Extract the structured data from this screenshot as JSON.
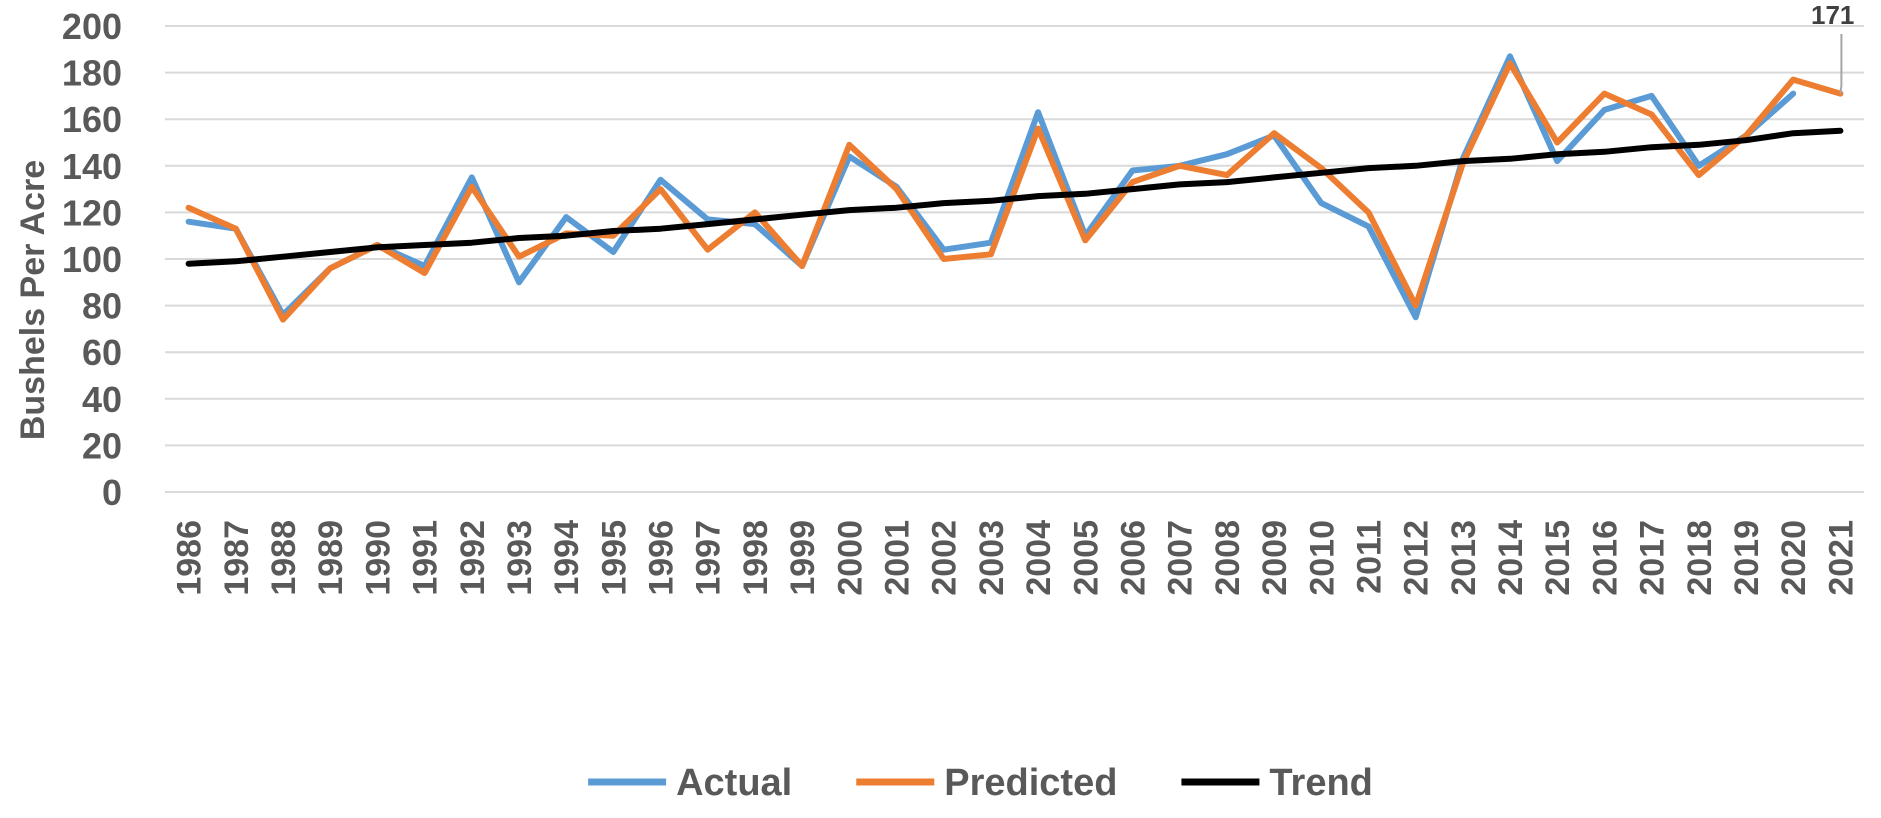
{
  "chart_data": {
    "type": "line",
    "title": "",
    "xlabel": "",
    "ylabel": "Bushels Per Acre",
    "ylim": [
      0,
      200
    ],
    "yticks": [
      "0",
      "20",
      "40",
      "60",
      "80",
      "100",
      "120",
      "140",
      "160",
      "180",
      "200"
    ],
    "grid": "horizontal",
    "legend_position": "bottom",
    "categories": [
      "1986",
      "1987",
      "1988",
      "1989",
      "1990",
      "1991",
      "1992",
      "1993",
      "1994",
      "1995",
      "1996",
      "1997",
      "1998",
      "1999",
      "2000",
      "2001",
      "2002",
      "2003",
      "2004",
      "2005",
      "2006",
      "2007",
      "2008",
      "2009",
      "2010",
      "2011",
      "2012",
      "2013",
      "2014",
      "2015",
      "2016",
      "2017",
      "2018",
      "2019",
      "2020",
      "2021"
    ],
    "series": [
      {
        "name": "Actual",
        "color": "#5b9bd5",
        "values": [
          116,
          113,
          76,
          96,
          106,
          97,
          135,
          90,
          118,
          103,
          134,
          117,
          115,
          97,
          144,
          131,
          104,
          107,
          163,
          110,
          138,
          140,
          145,
          153,
          124,
          114,
          75,
          143,
          187,
          142,
          164,
          170,
          140,
          153,
          171,
          null
        ]
      },
      {
        "name": "Predicted",
        "color": "#ed7d31",
        "values": [
          122,
          113,
          74,
          96,
          106,
          94,
          131,
          101,
          111,
          110,
          130,
          104,
          120,
          97,
          149,
          130,
          100,
          102,
          156,
          108,
          133,
          140,
          136,
          154,
          139,
          120,
          80,
          141,
          184,
          150,
          171,
          162,
          136,
          153,
          177,
          171
        ]
      },
      {
        "name": "Trend",
        "color": "#000000",
        "values": [
          98,
          99,
          101,
          103,
          105,
          106,
          107,
          109,
          110,
          112,
          113,
          115,
          117,
          119,
          121,
          122,
          124,
          125,
          127,
          128,
          130,
          132,
          133,
          135,
          137,
          139,
          140,
          142,
          143,
          145,
          146,
          148,
          149,
          151,
          154,
          155
        ]
      }
    ],
    "annotations": [
      {
        "text": "171",
        "series": "Predicted",
        "category": "2021"
      }
    ]
  }
}
